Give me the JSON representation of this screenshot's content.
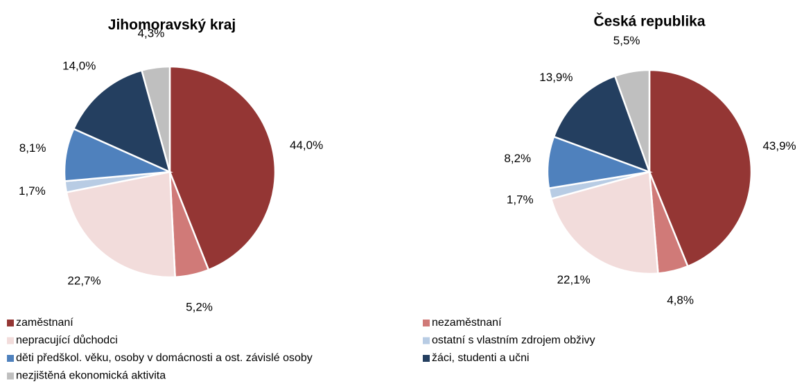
{
  "legend": {
    "categories": [
      "zaměstnaní",
      "nezaměstnaní",
      "nepracující důchodci",
      "ostatní s vlastním zdrojem obživy",
      "děti předškol. věku, osoby v domácnosti a ost. závislé osoby",
      "žáci, studenti a učni",
      "nezjištěná ekonomická aktivita"
    ],
    "colors": [
      "#943634",
      "#d07a78",
      "#f2dcdb",
      "#b8cce4",
      "#4f81bd",
      "#243f60",
      "#bfbfbf"
    ]
  },
  "chart_data": [
    {
      "type": "pie",
      "title": "Jihomoravský kraj",
      "values": [
        44.0,
        5.2,
        22.7,
        1.7,
        8.1,
        14.0,
        4.3
      ],
      "value_labels": [
        "44,0%",
        "5,2%",
        "22,7%",
        "1,7%",
        "8,1%",
        "14,0%",
        "4,3%"
      ]
    },
    {
      "type": "pie",
      "title": "Česká republika",
      "values": [
        43.9,
        4.8,
        22.1,
        1.7,
        8.2,
        13.9,
        5.5
      ],
      "value_labels": [
        "43,9%",
        "4,8%",
        "22,1%",
        "1,7%",
        "8,2%",
        "13,9%",
        "5,5%"
      ]
    }
  ]
}
